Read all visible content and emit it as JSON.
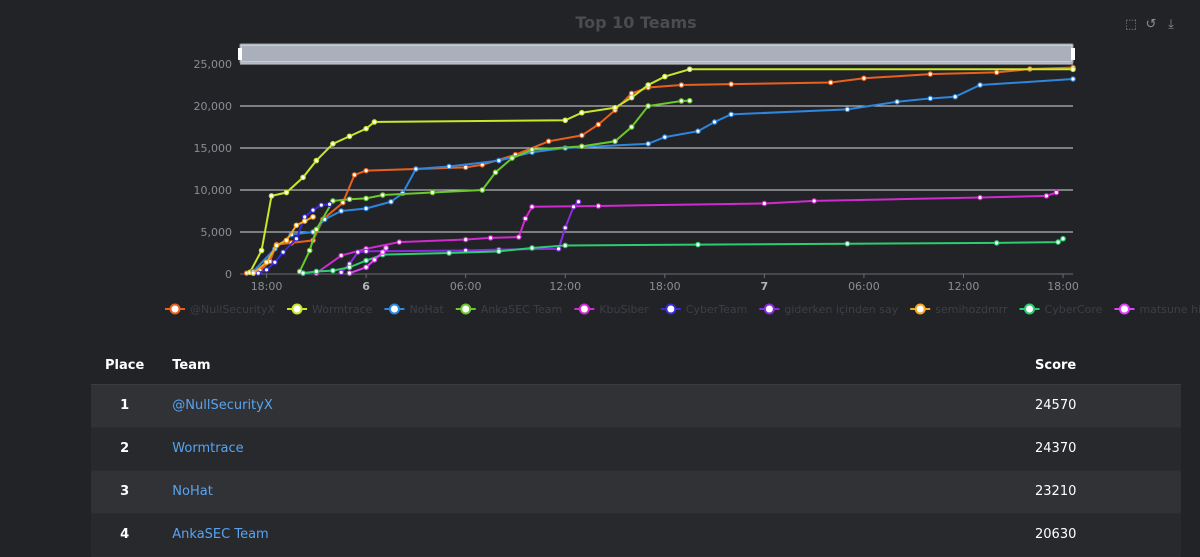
{
  "chart_data": {
    "type": "line",
    "title": "Top 10 Teams",
    "xlabel": "",
    "ylabel": "",
    "ylim": [
      0,
      25000
    ],
    "y_ticks": [
      0,
      5000,
      10000,
      15000,
      20000,
      25000
    ],
    "y_tick_labels": [
      "0",
      "5,000",
      "10,000",
      "15,000",
      "20,000",
      "25,000"
    ],
    "x_tick_labels": [
      "18:00",
      "6",
      "06:00",
      "12:00",
      "18:00",
      "7",
      "06:00",
      "12:00",
      "18:00"
    ],
    "x_range_hours": [
      0,
      48.6
    ],
    "x_tick_hours": [
      0,
      6,
      12,
      18,
      24,
      30,
      36,
      42,
      48
    ],
    "grid": true,
    "legend_placement": "bottom",
    "series": [
      {
        "name": "@NullSecurityX",
        "color": "#e8611c",
        "points": [
          [
            -1.2,
            100
          ],
          [
            -0.4,
            400
          ],
          [
            0.2,
            1500
          ],
          [
            0.6,
            3500
          ],
          [
            1.5,
            3700
          ],
          [
            2.8,
            4000
          ],
          [
            3.4,
            6500
          ],
          [
            4.6,
            8500
          ],
          [
            5.3,
            11800
          ],
          [
            6.0,
            12300
          ],
          [
            9.0,
            12500
          ],
          [
            12.0,
            12700
          ],
          [
            13.0,
            13000
          ],
          [
            15.0,
            14200
          ],
          [
            17.0,
            15800
          ],
          [
            19.0,
            16500
          ],
          [
            20.0,
            17800
          ],
          [
            21.0,
            19500
          ],
          [
            22.0,
            21500
          ],
          [
            23.0,
            22200
          ],
          [
            25.0,
            22500
          ],
          [
            28.0,
            22600
          ],
          [
            34.0,
            22800
          ],
          [
            36.0,
            23300
          ],
          [
            40.0,
            23800
          ],
          [
            44.0,
            24000
          ],
          [
            46.0,
            24400
          ],
          [
            48.6,
            24570
          ]
        ]
      },
      {
        "name": "Wormtrace",
        "color": "#c8e62c",
        "points": [
          [
            -1.0,
            200
          ],
          [
            -0.3,
            2800
          ],
          [
            0.3,
            9300
          ],
          [
            1.2,
            9700
          ],
          [
            2.2,
            11500
          ],
          [
            3.0,
            13500
          ],
          [
            4.0,
            15500
          ],
          [
            5.0,
            16400
          ],
          [
            6.0,
            17300
          ],
          [
            6.5,
            18100
          ],
          [
            18.0,
            18300
          ],
          [
            19.0,
            19200
          ],
          [
            21.0,
            19800
          ],
          [
            22.0,
            21000
          ],
          [
            23.0,
            22500
          ],
          [
            24.0,
            23500
          ],
          [
            25.5,
            24370
          ],
          [
            48.6,
            24370
          ]
        ]
      },
      {
        "name": "NoHat",
        "color": "#2e86de",
        "points": [
          [
            -0.8,
            300
          ],
          [
            0.5,
            3000
          ],
          [
            1.5,
            4700
          ],
          [
            2.8,
            5000
          ],
          [
            3.5,
            6500
          ],
          [
            4.5,
            7500
          ],
          [
            6.0,
            7800
          ],
          [
            7.5,
            8600
          ],
          [
            8.2,
            9600
          ],
          [
            9.0,
            12500
          ],
          [
            11.0,
            12800
          ],
          [
            14.0,
            13500
          ],
          [
            16.0,
            14500
          ],
          [
            18.0,
            15000
          ],
          [
            23.0,
            15500
          ],
          [
            24.0,
            16300
          ],
          [
            26.0,
            17000
          ],
          [
            27.0,
            18100
          ],
          [
            28.0,
            19000
          ],
          [
            35.0,
            19600
          ],
          [
            38.0,
            20500
          ],
          [
            40.0,
            20900
          ],
          [
            41.5,
            21100
          ],
          [
            43.0,
            22500
          ],
          [
            48.6,
            23210
          ]
        ]
      },
      {
        "name": "AnkaSEC Team",
        "color": "#6ac82a",
        "points": [
          [
            2.0,
            300
          ],
          [
            2.6,
            2800
          ],
          [
            3.0,
            5300
          ],
          [
            4.0,
            8700
          ],
          [
            5.0,
            8900
          ],
          [
            6.0,
            9000
          ],
          [
            7.0,
            9400
          ],
          [
            10.0,
            9700
          ],
          [
            13.0,
            10000
          ],
          [
            13.8,
            12100
          ],
          [
            14.8,
            13800
          ],
          [
            16.0,
            14800
          ],
          [
            19.0,
            15200
          ],
          [
            21.0,
            15800
          ],
          [
            22.0,
            17500
          ],
          [
            23.0,
            20000
          ],
          [
            25.0,
            20600
          ],
          [
            25.5,
            20630
          ]
        ]
      },
      {
        "name": "KbuSiber",
        "color": "#d12ad0",
        "points": [
          [
            3.0,
            100
          ],
          [
            4.5,
            2200
          ],
          [
            6.0,
            3000
          ],
          [
            8.0,
            3800
          ],
          [
            12.0,
            4100
          ],
          [
            13.5,
            4300
          ],
          [
            15.2,
            4400
          ],
          [
            15.6,
            6600
          ],
          [
            16.0,
            8000
          ],
          [
            20.0,
            8100
          ],
          [
            30.0,
            8400
          ],
          [
            33.0,
            8700
          ],
          [
            43.0,
            9100
          ],
          [
            47.0,
            9300
          ],
          [
            47.6,
            9700
          ]
        ]
      },
      {
        "name": "CyberTeam",
        "color": "#3a2bd8",
        "points": [
          [
            -0.5,
            100
          ],
          [
            0.0,
            500
          ],
          [
            0.5,
            1400
          ],
          [
            1.0,
            2600
          ],
          [
            1.8,
            4200
          ],
          [
            2.3,
            6800
          ],
          [
            2.8,
            7600
          ],
          [
            3.3,
            8200
          ],
          [
            3.8,
            8300
          ]
        ]
      },
      {
        "name": "giderken içinden say",
        "color": "#8a2be2",
        "points": [
          [
            4.5,
            200
          ],
          [
            5.0,
            1200
          ],
          [
            5.5,
            2600
          ],
          [
            6.0,
            2700
          ],
          [
            12.0,
            2800
          ],
          [
            14.0,
            2900
          ],
          [
            17.6,
            3000
          ],
          [
            18.0,
            5500
          ],
          [
            18.5,
            8000
          ],
          [
            18.8,
            8600
          ]
        ]
      },
      {
        "name": "semihozdmrr",
        "color": "#f5a623",
        "points": [
          [
            -0.8,
            100
          ],
          [
            0.0,
            1400
          ],
          [
            0.6,
            3400
          ],
          [
            1.2,
            4000
          ],
          [
            1.8,
            5800
          ],
          [
            2.3,
            6300
          ],
          [
            2.8,
            6800
          ]
        ]
      },
      {
        "name": "CyberCore",
        "color": "#2ecc71",
        "points": [
          [
            2.2,
            100
          ],
          [
            3.0,
            300
          ],
          [
            4.0,
            400
          ],
          [
            5.0,
            800
          ],
          [
            6.0,
            1600
          ],
          [
            7.0,
            2300
          ],
          [
            11.0,
            2500
          ],
          [
            14.0,
            2700
          ],
          [
            16.0,
            3100
          ],
          [
            18.0,
            3400
          ],
          [
            26.0,
            3500
          ],
          [
            35.0,
            3600
          ],
          [
            44.0,
            3700
          ],
          [
            47.7,
            3800
          ],
          [
            48.0,
            4200
          ]
        ]
      },
      {
        "name": "matsune hiku",
        "color": "#e040fb",
        "points": [
          [
            5.0,
            100
          ],
          [
            6.0,
            800
          ],
          [
            6.5,
            1700
          ],
          [
            7.0,
            2600
          ],
          [
            7.2,
            3100
          ]
        ]
      }
    ]
  },
  "toolbox": {
    "zoom_icon": "zoom-icon",
    "restore_icon": "restore-icon",
    "download_icon": "download-icon"
  },
  "table": {
    "headers": {
      "place": "Place",
      "team": "Team",
      "score": "Score"
    },
    "rows": [
      {
        "place": "1",
        "team": "@NullSecurityX",
        "score": "24570"
      },
      {
        "place": "2",
        "team": "Wormtrace",
        "score": "24370"
      },
      {
        "place": "3",
        "team": "NoHat",
        "score": "23210"
      },
      {
        "place": "4",
        "team": "AnkaSEC Team",
        "score": "20630"
      }
    ]
  }
}
